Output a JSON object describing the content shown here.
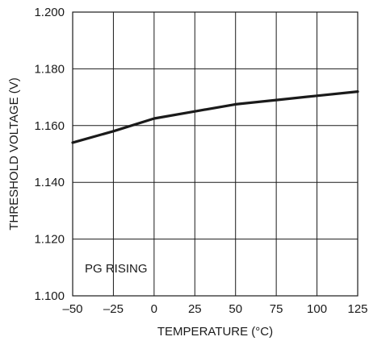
{
  "chart_data": {
    "type": "line",
    "xlabel": "TEMPERATURE (°C)",
    "ylabel": "THRESHOLD VOLTAGE (V)",
    "xlim": [
      -50,
      125
    ],
    "ylim": [
      1.1,
      1.2
    ],
    "x_ticks": [
      -50,
      -25,
      0,
      25,
      50,
      75,
      100,
      125
    ],
    "x_tick_labels": [
      "–50",
      "–25",
      "0",
      "25",
      "50",
      "75",
      "100",
      "125"
    ],
    "y_ticks": [
      1.1,
      1.12,
      1.14,
      1.16,
      1.18,
      1.2
    ],
    "y_tick_labels": [
      "1.100",
      "1.120",
      "1.140",
      "1.160",
      "1.180",
      "1.200"
    ],
    "grid": true,
    "annotation": "PG RISING",
    "series": [
      {
        "x": [
          -50,
          -25,
          0,
          25,
          50,
          75,
          100,
          125
        ],
        "y": [
          1.154,
          1.158,
          1.1625,
          1.165,
          1.1675,
          1.169,
          1.1705,
          1.172
        ]
      }
    ]
  }
}
